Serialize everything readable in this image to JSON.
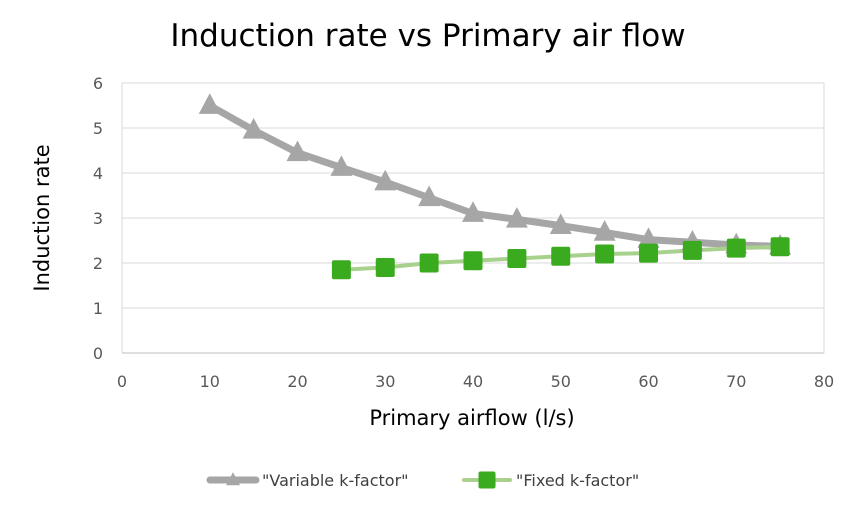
{
  "chart_data": {
    "type": "line",
    "title": "Induction rate vs Primary air flow",
    "xlabel": "Primary airflow  (l/s)",
    "ylabel": "Induction rate",
    "xlim": [
      0,
      80
    ],
    "ylim": [
      0,
      6
    ],
    "x_ticks": [
      0,
      10,
      20,
      30,
      40,
      50,
      60,
      70,
      80
    ],
    "y_ticks": [
      0,
      1,
      2,
      3,
      4,
      5,
      6
    ],
    "grid": "horizontal",
    "legend_position": "bottom",
    "series": [
      {
        "name": "\"Variable k-factor\"",
        "marker": "triangle",
        "color": "#a6a6a6",
        "line_color": "#a6a6a6",
        "marker_color": "#a6a6a6",
        "x": [
          10,
          15,
          20,
          25,
          30,
          35,
          40,
          45,
          50,
          55,
          60,
          65,
          70,
          75
        ],
        "y": [
          5.5,
          4.95,
          4.45,
          4.12,
          3.8,
          3.45,
          3.1,
          2.97,
          2.83,
          2.68,
          2.52,
          2.46,
          2.4,
          2.37
        ]
      },
      {
        "name": "\"Fixed k-factor\"",
        "marker": "square",
        "color": "#3aaa1e",
        "line_color": "#a9d18e",
        "marker_color": "#3aaa1e",
        "x": [
          25,
          30,
          35,
          40,
          45,
          50,
          55,
          60,
          65,
          70,
          75
        ],
        "y": [
          1.85,
          1.9,
          2.0,
          2.05,
          2.1,
          2.15,
          2.2,
          2.22,
          2.28,
          2.33,
          2.36
        ]
      }
    ]
  },
  "colors": {
    "gridline": "#d9d9d9",
    "axis": "#bfbfbf"
  }
}
